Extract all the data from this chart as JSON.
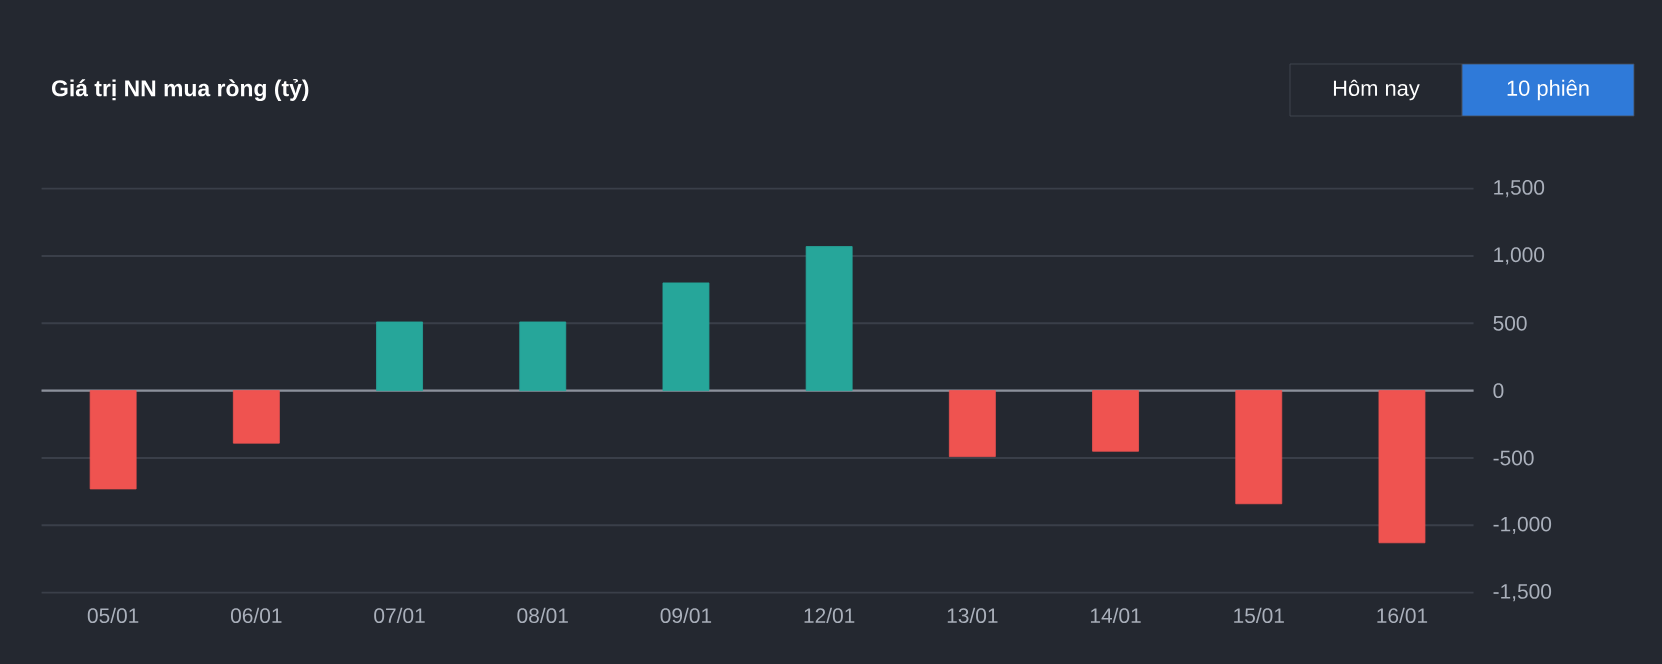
{
  "chart_data": {
    "type": "bar",
    "title": "Giá trị NN mua ròng (tỷ)",
    "categories": [
      "05/01",
      "06/01",
      "07/01",
      "08/01",
      "09/01",
      "12/01",
      "13/01",
      "14/01",
      "15/01",
      "16/01"
    ],
    "values": [
      -730,
      -390,
      510,
      510,
      800,
      1070,
      -490,
      -450,
      -840,
      -1130
    ],
    "colors": [
      "#ef5350",
      "#ef5350",
      "#26a69a",
      "#26a69a",
      "#26a69a",
      "#26a69a",
      "#ef5350",
      "#ef5350",
      "#ef5350",
      "#ef5350"
    ],
    "ylim": [
      -1500,
      1500
    ],
    "yticks": [
      {
        "value": -1500,
        "label": "-1,500"
      },
      {
        "value": -1000,
        "label": "-1,000"
      },
      {
        "value": -500,
        "label": "-500"
      },
      {
        "value": 0,
        "label": "0"
      },
      {
        "value": 500,
        "label": "500"
      },
      {
        "value": 1000,
        "label": "1,000"
      },
      {
        "value": 1500,
        "label": "1,500"
      }
    ],
    "grid": "y",
    "annotations": [
      "Hôm nay",
      "10 phiên"
    ]
  }
}
